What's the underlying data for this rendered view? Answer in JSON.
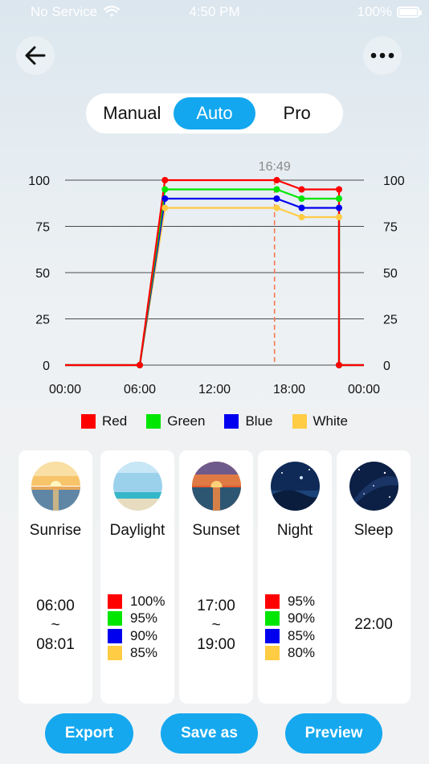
{
  "status_bar": {
    "carrier": "No Service",
    "time": "4:50 PM",
    "battery": "100%"
  },
  "header": {
    "back_icon": "arrow-left-icon",
    "more_icon": "more-horizontal-icon"
  },
  "mode_switch": {
    "options": [
      "Manual",
      "Auto",
      "Pro"
    ],
    "selected": "Auto"
  },
  "colors": {
    "accent": "#12a7ee",
    "red": "#ff0000",
    "green": "#00e600",
    "blue": "#0000ee",
    "white": "#ffcc44",
    "marker_line": "#f07a52"
  },
  "chart_data": {
    "type": "line",
    "x_ticks": [
      "00:00",
      "06:00",
      "12:00",
      "18:00",
      "00:00"
    ],
    "y_ticks_left": [
      "100",
      "75",
      "50",
      "25",
      "0"
    ],
    "y_ticks_right": [
      "100",
      "75",
      "50",
      "25",
      "0"
    ],
    "ylim": [
      0,
      100
    ],
    "xlim_hours": [
      0,
      24
    ],
    "current_time_label": "16:49",
    "current_time_hours": 16.82,
    "grid": true,
    "legend_position": "bottom",
    "series": [
      {
        "name": "Red",
        "color": "#ff0000",
        "points": [
          [
            0,
            0
          ],
          [
            6,
            0
          ],
          [
            8.02,
            100
          ],
          [
            17,
            100
          ],
          [
            19,
            95
          ],
          [
            22,
            95
          ],
          [
            22,
            0
          ],
          [
            24,
            0
          ]
        ]
      },
      {
        "name": "Green",
        "color": "#00e600",
        "points": [
          [
            0,
            0
          ],
          [
            6,
            0
          ],
          [
            8.02,
            95
          ],
          [
            17,
            95
          ],
          [
            19,
            90
          ],
          [
            22,
            90
          ],
          [
            22,
            0
          ],
          [
            24,
            0
          ]
        ]
      },
      {
        "name": "Blue",
        "color": "#0000ee",
        "points": [
          [
            0,
            0
          ],
          [
            6,
            0
          ],
          [
            8.02,
            90
          ],
          [
            17,
            90
          ],
          [
            19,
            85
          ],
          [
            22,
            85
          ],
          [
            22,
            0
          ],
          [
            24,
            0
          ]
        ]
      },
      {
        "name": "White",
        "color": "#ffcc44",
        "points": [
          [
            0,
            0
          ],
          [
            6,
            0
          ],
          [
            8.02,
            85
          ],
          [
            17,
            85
          ],
          [
            19,
            80
          ],
          [
            22,
            80
          ],
          [
            22,
            0
          ],
          [
            24,
            0
          ]
        ]
      }
    ]
  },
  "legend": [
    {
      "label": "Red",
      "color": "#ff0000"
    },
    {
      "label": "Green",
      "color": "#00e600"
    },
    {
      "label": "Blue",
      "color": "#0000ee"
    },
    {
      "label": "White",
      "color": "#ffcc44"
    }
  ],
  "phases": [
    {
      "name": "Sunrise",
      "icon": "sunrise-photo-icon",
      "start": "06:00",
      "sep": "~",
      "end": "08:01"
    },
    {
      "name": "Daylight",
      "icon": "daylight-photo-icon",
      "levels": [
        "100%",
        "95%",
        "90%",
        "85%"
      ]
    },
    {
      "name": "Sunset",
      "icon": "sunset-photo-icon",
      "start": "17:00",
      "sep": "~",
      "end": "19:00"
    },
    {
      "name": "Night",
      "icon": "night-photo-icon",
      "levels": [
        "95%",
        "90%",
        "85%",
        "80%"
      ]
    },
    {
      "name": "Sleep",
      "icon": "sleep-photo-icon",
      "time": "22:00"
    }
  ],
  "actions": {
    "export": "Export",
    "save_as": "Save as",
    "preview": "Preview"
  }
}
